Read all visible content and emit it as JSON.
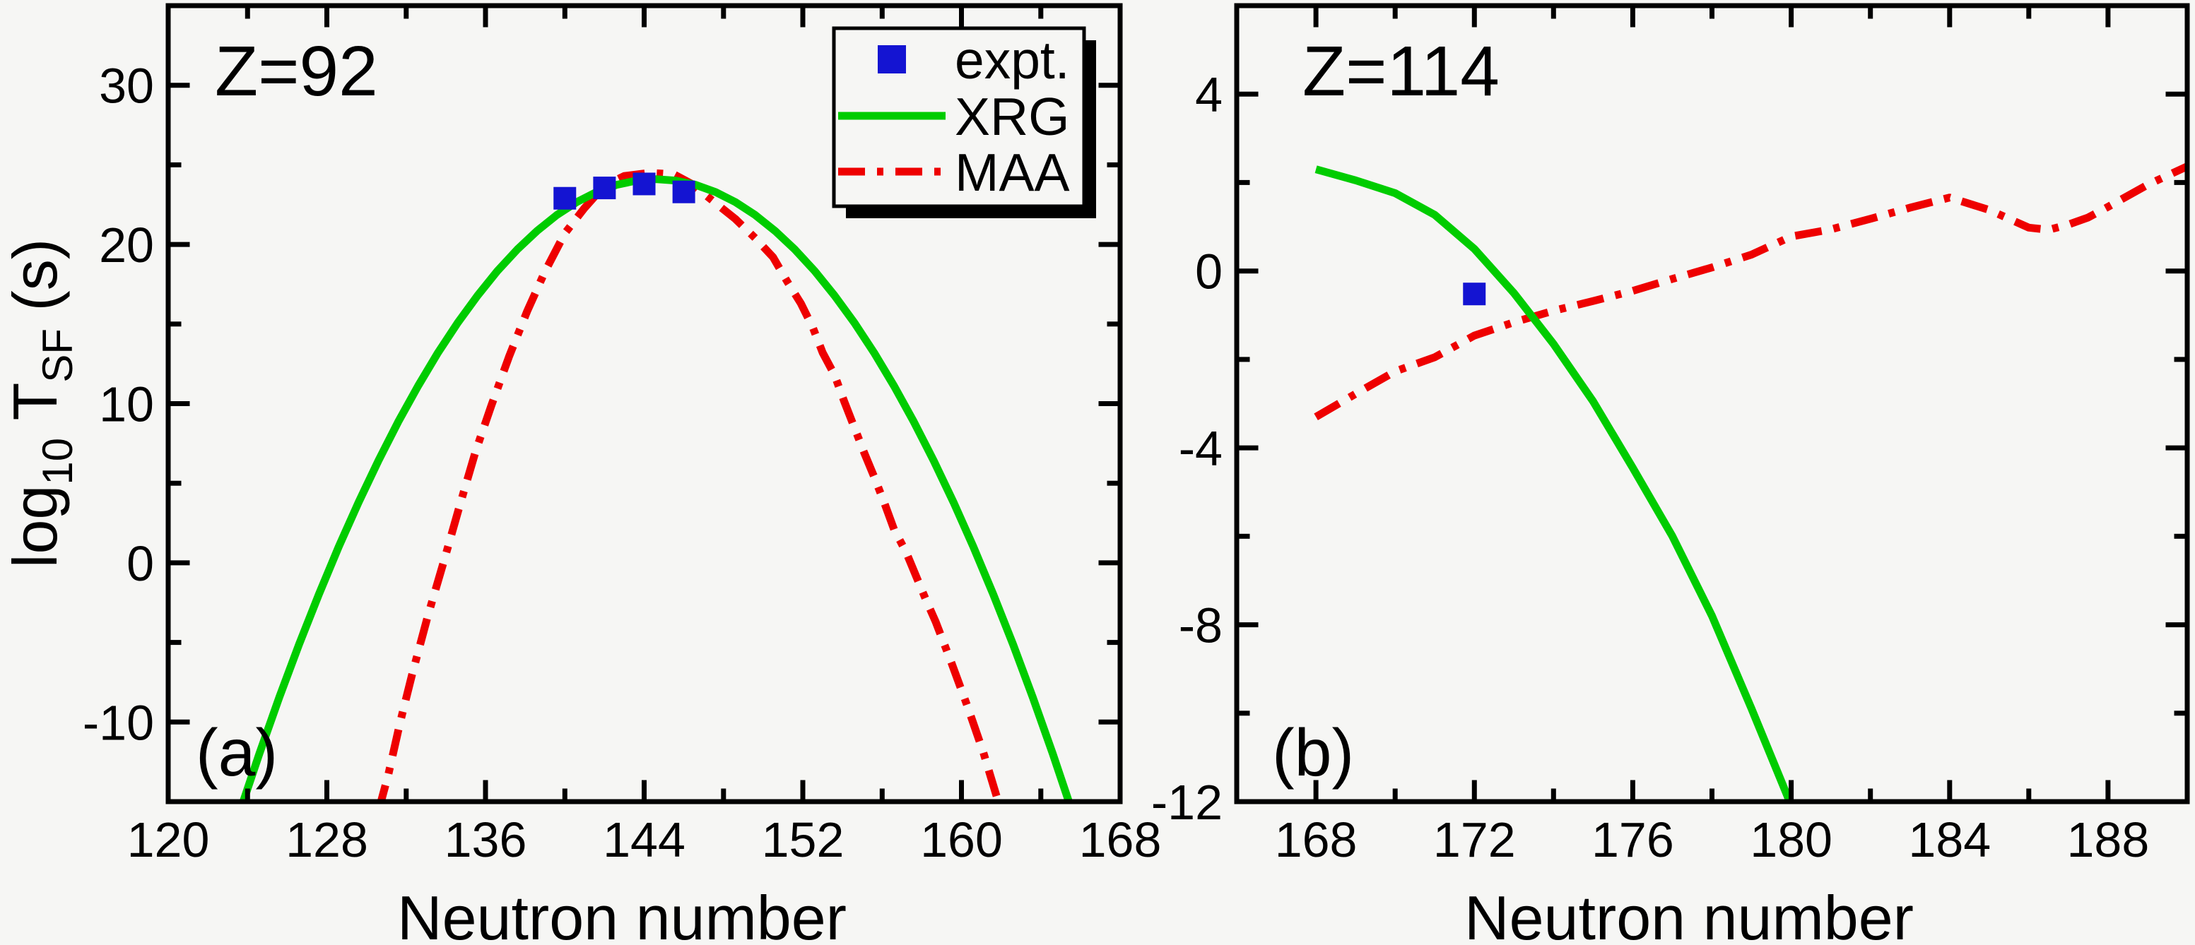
{
  "figure": {
    "background": "#f6f6f4",
    "frame_color": "#000000",
    "text_color": "#000000"
  },
  "ylabel": {
    "prefix": "log",
    "sub1": "10",
    "mid": " T",
    "sub2": "SF",
    "suffix": " (s)"
  },
  "legend": {
    "position": "top-right",
    "items": [
      {
        "label": "expt.",
        "marker": "blue-square"
      },
      {
        "label": "XRG",
        "line": "green-solid"
      },
      {
        "label": "MAA",
        "line": "red-dash-dot"
      }
    ]
  },
  "chart_data": [
    {
      "panel": "a",
      "type": "line",
      "title": "Z=92",
      "panel_label": "(a)",
      "xlabel": "Neutron number",
      "ylabel": "log10 T_SF (s)",
      "xlim": [
        120,
        168
      ],
      "ylim": [
        -15,
        35
      ],
      "x_major_ticks": [
        120,
        128,
        136,
        144,
        152,
        160,
        168
      ],
      "x_minor_ticks": [
        124,
        132,
        140,
        148,
        156,
        164
      ],
      "y_major_ticks": [
        30,
        20,
        10,
        0,
        -10
      ],
      "y_minor_ticks": [
        25,
        15,
        5,
        -5
      ],
      "grid": false,
      "series": [
        {
          "name": "MAA",
          "type": "line",
          "style": "dash-dot",
          "color": "#ee0000",
          "points": [
            [
              130.6,
              -15.6
            ],
            [
              131.1,
              -13.3
            ],
            [
              131.7,
              -10.0
            ],
            [
              132.3,
              -7.0
            ],
            [
              133.1,
              -3.3
            ],
            [
              133.9,
              0.1
            ],
            [
              134.7,
              3.6
            ],
            [
              135.5,
              7.0
            ],
            [
              136.3,
              9.9
            ],
            [
              137.2,
              13.0
            ],
            [
              138.1,
              15.8
            ],
            [
              139.0,
              18.3
            ],
            [
              140.0,
              20.7
            ],
            [
              141.0,
              22.3
            ],
            [
              142.0,
              23.7
            ],
            [
              143.0,
              24.3
            ],
            [
              144.3,
              24.5
            ],
            [
              145.5,
              24.4
            ],
            [
              146.4,
              23.8
            ],
            [
              147.0,
              23.2
            ],
            [
              147.6,
              22.6
            ],
            [
              148.6,
              21.6
            ],
            [
              149.6,
              20.4
            ],
            [
              150.5,
              19.2
            ],
            [
              151.2,
              17.7
            ],
            [
              151.9,
              16.3
            ],
            [
              152.5,
              14.8
            ],
            [
              153.0,
              13.2
            ],
            [
              153.6,
              11.8
            ],
            [
              154.1,
              10.1
            ],
            [
              154.6,
              8.5
            ],
            [
              155.1,
              6.9
            ],
            [
              155.6,
              5.4
            ],
            [
              156.1,
              3.8
            ],
            [
              156.6,
              2.1
            ],
            [
              157.2,
              0.7
            ],
            [
              158.2,
              -2.3
            ],
            [
              158.7,
              -3.7
            ],
            [
              159.5,
              -6.3
            ],
            [
              160.3,
              -9.0
            ],
            [
              161.1,
              -11.9
            ],
            [
              162.0,
              -15.6
            ]
          ]
        },
        {
          "name": "XRG",
          "type": "line",
          "style": "solid",
          "color": "#00cc00",
          "points": [
            [
              123.6,
              -15.68
            ],
            [
              124.6,
              -11.98
            ],
            [
              125.6,
              -8.46
            ],
            [
              126.6,
              -5.12
            ],
            [
              127.6,
              -1.97
            ],
            [
              128.6,
              1.01
            ],
            [
              129.6,
              3.8
            ],
            [
              130.6,
              6.42
            ],
            [
              131.6,
              8.86
            ],
            [
              132.6,
              11.11
            ],
            [
              133.6,
              13.19
            ],
            [
              134.6,
              15.08
            ],
            [
              135.6,
              16.79
            ],
            [
              136.6,
              18.33
            ],
            [
              137.6,
              19.68
            ],
            [
              138.6,
              20.85
            ],
            [
              139.6,
              21.85
            ],
            [
              140.6,
              22.66
            ],
            [
              141.6,
              23.29
            ],
            [
              142.6,
              23.74
            ],
            [
              143.6,
              24.01
            ],
            [
              144.6,
              24.1
            ],
            [
              145.6,
              24.01
            ],
            [
              146.6,
              23.74
            ],
            [
              147.6,
              23.29
            ],
            [
              148.6,
              22.66
            ],
            [
              149.6,
              21.85
            ],
            [
              150.6,
              20.85
            ],
            [
              151.6,
              19.68
            ],
            [
              152.6,
              18.33
            ],
            [
              153.6,
              16.79
            ],
            [
              154.6,
              15.08
            ],
            [
              155.6,
              13.19
            ],
            [
              156.6,
              11.11
            ],
            [
              157.6,
              8.86
            ],
            [
              158.6,
              6.42
            ],
            [
              159.6,
              3.8
            ],
            [
              160.6,
              1.01
            ],
            [
              161.6,
              -1.97
            ],
            [
              162.6,
              -5.12
            ],
            [
              163.6,
              -8.46
            ],
            [
              164.6,
              -11.98
            ],
            [
              165.6,
              -15.68
            ]
          ]
        },
        {
          "name": "expt.",
          "type": "scatter",
          "marker": "square",
          "color": "#1414d2",
          "points": [
            [
              140,
              22.9
            ],
            [
              142,
              23.55
            ],
            [
              144,
              23.8
            ],
            [
              146,
              23.3
            ]
          ]
        }
      ]
    },
    {
      "panel": "b",
      "type": "line",
      "title": "Z=114",
      "panel_label": "(b)",
      "xlabel": "Neutron number",
      "ylabel": "",
      "xlim": [
        166,
        190
      ],
      "ylim": [
        -12,
        6
      ],
      "x_major_ticks": [
        168,
        172,
        176,
        180,
        184,
        188
      ],
      "x_minor_ticks": [
        170,
        174,
        178,
        182,
        186
      ],
      "y_major_ticks": [
        4,
        0,
        -4,
        -8,
        -12
      ],
      "y_minor_ticks": [
        2,
        -2,
        -6,
        -10
      ],
      "grid": false,
      "series": [
        {
          "name": "MAA",
          "type": "line",
          "style": "dash-dot",
          "color": "#ee0000",
          "points": [
            [
              168,
              -3.3
            ],
            [
              169,
              -2.78
            ],
            [
              170,
              -2.27
            ],
            [
              171,
              -1.95
            ],
            [
              172,
              -1.46
            ],
            [
              173,
              -1.16
            ],
            [
              174,
              -0.9
            ],
            [
              175,
              -0.68
            ],
            [
              176,
              -0.45
            ],
            [
              177,
              -0.18
            ],
            [
              178,
              0.08
            ],
            [
              179,
              0.37
            ],
            [
              180,
              0.78
            ],
            [
              181,
              0.94
            ],
            [
              182,
              1.18
            ],
            [
              183,
              1.43
            ],
            [
              184,
              1.66
            ],
            [
              185,
              1.38
            ],
            [
              186,
              0.98
            ],
            [
              186.5,
              0.93
            ],
            [
              187,
              1.05
            ],
            [
              187.5,
              1.21
            ],
            [
              188,
              1.45
            ],
            [
              189,
              1.95
            ],
            [
              190.2,
              2.45
            ]
          ]
        },
        {
          "name": "XRG",
          "type": "line",
          "style": "solid",
          "color": "#00cc00",
          "points": [
            [
              168,
              2.3
            ],
            [
              169,
              2.05
            ],
            [
              170,
              1.76
            ],
            [
              171,
              1.27
            ],
            [
              172,
              0.5
            ],
            [
              173,
              -0.5
            ],
            [
              174,
              -1.65
            ],
            [
              175,
              -2.95
            ],
            [
              176,
              -4.45
            ],
            [
              177,
              -6.0
            ],
            [
              178,
              -7.8
            ],
            [
              179,
              -9.9
            ],
            [
              180.1,
              -12.3
            ]
          ]
        },
        {
          "name": "expt.",
          "type": "scatter",
          "marker": "square",
          "color": "#1414d2",
          "points": [
            [
              172,
              -0.52
            ]
          ]
        }
      ]
    }
  ]
}
